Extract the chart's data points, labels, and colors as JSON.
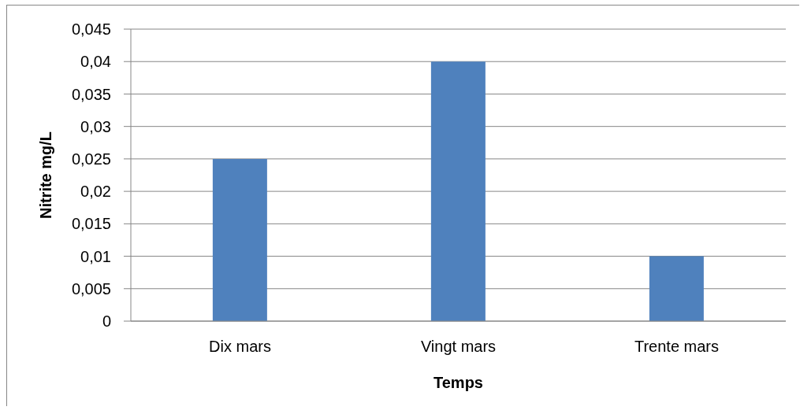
{
  "chart_data": {
    "type": "bar",
    "xlabel": "Temps",
    "ylabel": "Nitrite mg/L",
    "categories": [
      "Dix mars",
      "Vingt mars",
      "Trente mars"
    ],
    "series": [
      {
        "color": "#4f81bd",
        "values": [
          0.025,
          0.04,
          0.01
        ]
      }
    ],
    "ylim": [
      0,
      0.045
    ],
    "yticks": [
      0,
      {
        "value": 0.005,
        "label": "0,005"
      },
      {
        "value": 0.01,
        "label": "0,01"
      },
      {
        "value": 0.015,
        "label": "0,015"
      },
      {
        "value": 0.02,
        "label": "0,02"
      },
      {
        "value": 0.025,
        "label": "0,025"
      },
      {
        "value": 0.03,
        "label": "0,03"
      },
      {
        "value": 0.035,
        "label": "0,035"
      },
      {
        "value": 0.04,
        "label": "0,04"
      },
      {
        "value": 0.045,
        "label": "0,045"
      }
    ],
    "grid": "y"
  }
}
